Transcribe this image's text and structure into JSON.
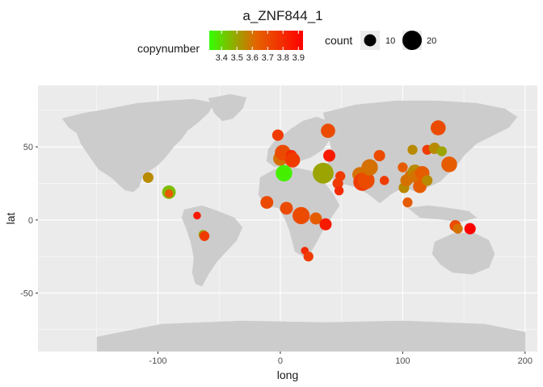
{
  "chart_data": {
    "type": "scatter",
    "title": "a_ZNF844_1",
    "xlabel": "long",
    "ylabel": "lat",
    "xlim": [
      -198,
      210
    ],
    "ylim": [
      -90,
      92
    ],
    "x_ticks": [
      -100,
      0,
      100,
      200
    ],
    "x_tick_labels": [
      "-100",
      "0",
      "100",
      "200"
    ],
    "y_ticks": [
      -50,
      0,
      50
    ],
    "y_tick_labels": [
      "-50",
      "0",
      "50"
    ],
    "grid": true,
    "color_legend": {
      "title": "copynumber",
      "min": 3.32,
      "max": 3.93,
      "ticks": [
        3.4,
        3.5,
        3.6,
        3.7,
        3.8,
        3.9
      ],
      "tick_labels": [
        "3.4",
        "3.5",
        "3.6",
        "3.7",
        "3.8",
        "3.9"
      ],
      "low_color": "#33ff00",
      "mid_color": "#e46400",
      "high_color": "#ff0000"
    },
    "size_legend": {
      "title": "count",
      "values": [
        10,
        20
      ],
      "labels": [
        "10",
        "20"
      ]
    },
    "points": [
      {
        "x": -108,
        "y": 29,
        "c": 3.55,
        "n": 8
      },
      {
        "x": -91,
        "y": 19,
        "c": 3.45,
        "n": 12
      },
      {
        "x": -91,
        "y": 18,
        "c": 3.65,
        "n": 5
      },
      {
        "x": -68,
        "y": 3,
        "c": 3.85,
        "n": 4
      },
      {
        "x": -63,
        "y": -10,
        "c": 3.5,
        "n": 6
      },
      {
        "x": -62,
        "y": -11,
        "c": 3.75,
        "n": 7
      },
      {
        "x": -11,
        "y": 12,
        "c": 3.7,
        "n": 11
      },
      {
        "x": -2,
        "y": 58,
        "c": 3.75,
        "n": 9
      },
      {
        "x": 0,
        "y": 42,
        "c": 3.6,
        "n": 13
      },
      {
        "x": 2,
        "y": 46,
        "c": 3.7,
        "n": 15
      },
      {
        "x": 3,
        "y": 32,
        "c": 3.35,
        "n": 16
      },
      {
        "x": 5,
        "y": 8,
        "c": 3.7,
        "n": 11
      },
      {
        "x": 9,
        "y": 44,
        "c": 3.8,
        "n": 9
      },
      {
        "x": 10,
        "y": 41,
        "c": 3.75,
        "n": 14
      },
      {
        "x": 17,
        "y": 3,
        "c": 3.7,
        "n": 17
      },
      {
        "x": 20,
        "y": -21,
        "c": 3.8,
        "n": 4
      },
      {
        "x": 23,
        "y": -25,
        "c": 3.75,
        "n": 7
      },
      {
        "x": 29,
        "y": 1,
        "c": 3.65,
        "n": 10
      },
      {
        "x": 35,
        "y": 32,
        "c": 3.5,
        "n": 22
      },
      {
        "x": 37,
        "y": -3,
        "c": 3.85,
        "n": 10
      },
      {
        "x": 39,
        "y": 61,
        "c": 3.7,
        "n": 13
      },
      {
        "x": 40,
        "y": 44,
        "c": 3.85,
        "n": 10
      },
      {
        "x": 47,
        "y": 25,
        "c": 3.75,
        "n": 8
      },
      {
        "x": 48,
        "y": 20,
        "c": 3.8,
        "n": 6
      },
      {
        "x": 49,
        "y": 30,
        "c": 3.75,
        "n": 7
      },
      {
        "x": 65,
        "y": 31,
        "c": 3.6,
        "n": 14
      },
      {
        "x": 67,
        "y": 26,
        "c": 3.75,
        "n": 18
      },
      {
        "x": 70,
        "y": 27,
        "c": 3.7,
        "n": 17
      },
      {
        "x": 73,
        "y": 36,
        "c": 3.6,
        "n": 16
      },
      {
        "x": 81,
        "y": 44,
        "c": 3.7,
        "n": 9
      },
      {
        "x": 85,
        "y": 27,
        "c": 3.75,
        "n": 6
      },
      {
        "x": 100,
        "y": 36,
        "c": 3.65,
        "n": 7
      },
      {
        "x": 101,
        "y": 22,
        "c": 3.55,
        "n": 8
      },
      {
        "x": 103,
        "y": 27,
        "c": 3.6,
        "n": 10
      },
      {
        "x": 104,
        "y": 12,
        "c": 3.65,
        "n": 7
      },
      {
        "x": 107,
        "y": 30,
        "c": 3.6,
        "n": 12
      },
      {
        "x": 108,
        "y": 48,
        "c": 3.55,
        "n": 7
      },
      {
        "x": 110,
        "y": 33,
        "c": 3.55,
        "n": 13
      },
      {
        "x": 111,
        "y": 30,
        "c": 3.6,
        "n": 11
      },
      {
        "x": 114,
        "y": 23,
        "c": 3.65,
        "n": 12
      },
      {
        "x": 116,
        "y": 32,
        "c": 3.65,
        "n": 13
      },
      {
        "x": 120,
        "y": 27,
        "c": 3.55,
        "n": 8
      },
      {
        "x": 120,
        "y": 48,
        "c": 3.75,
        "n": 7
      },
      {
        "x": 126,
        "y": 49,
        "c": 3.55,
        "n": 9
      },
      {
        "x": 129,
        "y": 63,
        "c": 3.7,
        "n": 14
      },
      {
        "x": 132,
        "y": 47,
        "c": 3.5,
        "n": 7
      },
      {
        "x": 138,
        "y": 38,
        "c": 3.65,
        "n": 15
      },
      {
        "x": 143,
        "y": -4,
        "c": 3.7,
        "n": 9
      },
      {
        "x": 145,
        "y": -6,
        "c": 3.6,
        "n": 7
      },
      {
        "x": 155,
        "y": -6,
        "c": 3.93,
        "n": 9
      }
    ]
  }
}
